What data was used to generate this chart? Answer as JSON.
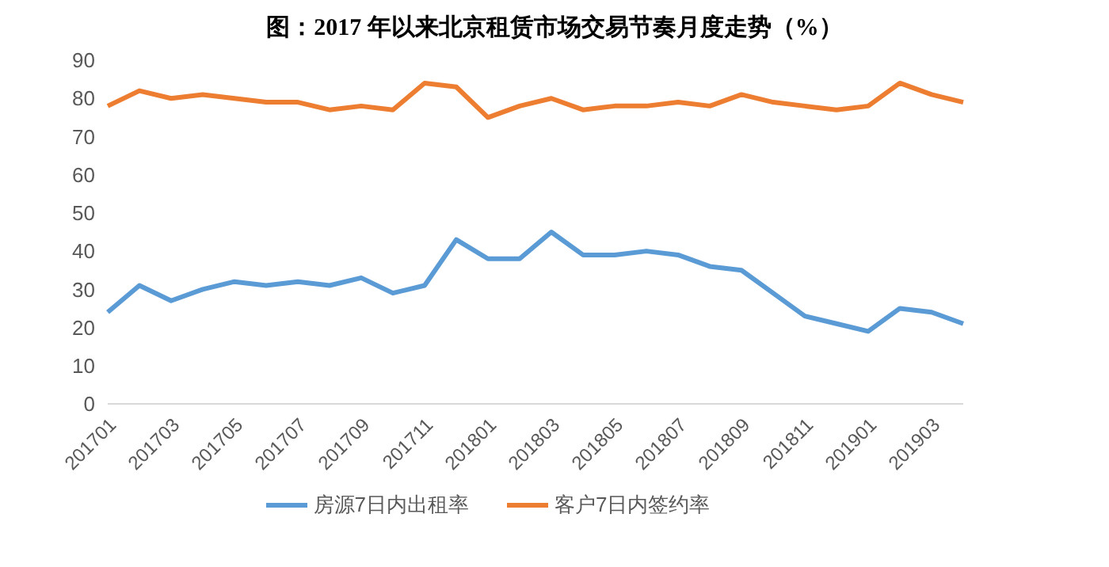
{
  "chart_data": {
    "type": "line",
    "title": "图：2017 年以来北京租赁市场交易节奏月度走势（%）",
    "categories": [
      "201701",
      null,
      "201703",
      null,
      "201705",
      null,
      "201707",
      null,
      "201709",
      null,
      "201711",
      null,
      "201801",
      null,
      "201803",
      null,
      "201805",
      null,
      "201807",
      null,
      "201809",
      null,
      "201811",
      null,
      "201901",
      null,
      "201903",
      null
    ],
    "series": [
      {
        "name": "房源7日内出租率",
        "color": "#5b9bd5",
        "values": [
          24,
          31,
          27,
          30,
          32,
          31,
          32,
          31,
          33,
          29,
          31,
          43,
          38,
          38,
          45,
          39,
          39,
          40,
          39,
          36,
          35,
          29,
          23,
          21,
          19,
          25,
          24,
          21
        ]
      },
      {
        "name": "客户7日内签约率",
        "color": "#ed7d31",
        "values": [
          78,
          82,
          80,
          81,
          80,
          79,
          79,
          77,
          78,
          77,
          84,
          83,
          75,
          78,
          80,
          77,
          78,
          78,
          79,
          78,
          81,
          79,
          78,
          77,
          78,
          84,
          81,
          79
        ]
      }
    ],
    "ylim": [
      0,
      90
    ],
    "yticks": [
      0,
      10,
      20,
      30,
      40,
      50,
      60,
      70,
      80,
      90
    ],
    "legend": "bottom",
    "marker": "none",
    "line_style": "solid"
  }
}
